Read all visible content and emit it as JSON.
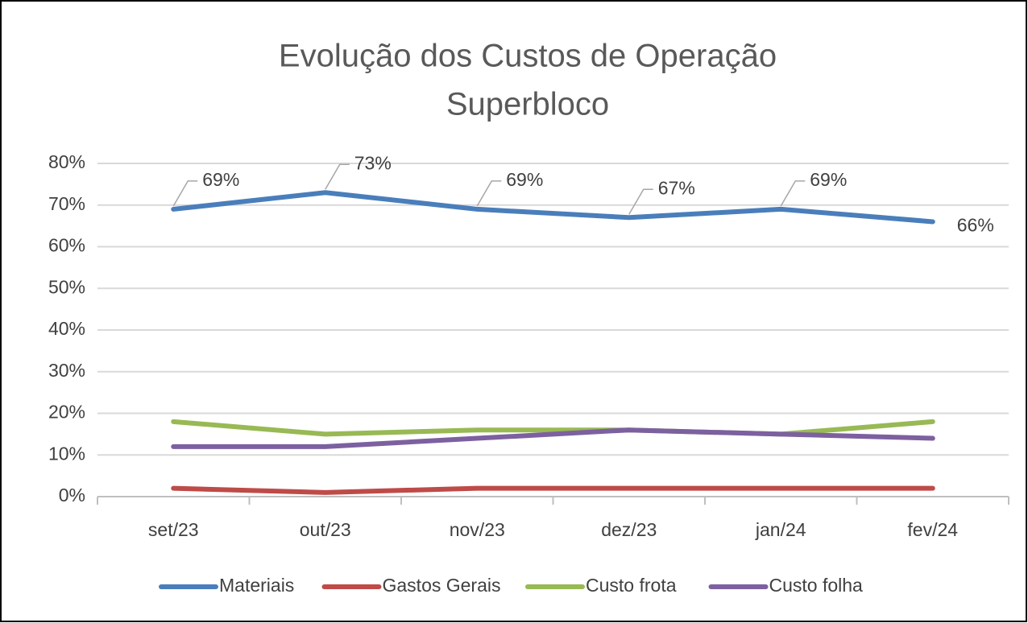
{
  "chart_data": {
    "type": "line",
    "title": [
      "Evolução dos Custos de Operação",
      "Superbloco"
    ],
    "categories": [
      "set/23",
      "out/23",
      "nov/23",
      "dez/23",
      "jan/24",
      "fev/24"
    ],
    "series": [
      {
        "name": "Materiais",
        "color": "#4a7ebb",
        "values": [
          69,
          73,
          69,
          67,
          69,
          66
        ],
        "value_labels": [
          "69%",
          "73%",
          "69%",
          "67%",
          "69%",
          "66%"
        ]
      },
      {
        "name": "Gastos Gerais",
        "color": "#be4b48",
        "values": [
          2,
          1,
          2,
          2,
          2,
          2
        ]
      },
      {
        "name": "Custo frota",
        "color": "#98b954",
        "values": [
          18,
          15,
          16,
          16,
          15,
          18
        ]
      },
      {
        "name": "Custo folha",
        "color": "#7d60a0",
        "values": [
          12,
          12,
          14,
          16,
          15,
          14
        ]
      }
    ],
    "ylim": [
      0,
      80
    ],
    "yticks": [
      {
        "value": 0,
        "label": "0%"
      },
      {
        "value": 10,
        "label": "10%"
      },
      {
        "value": 20,
        "label": "20%"
      },
      {
        "value": 30,
        "label": "30%"
      },
      {
        "value": 40,
        "label": "40%"
      },
      {
        "value": 50,
        "label": "50%"
      },
      {
        "value": 60,
        "label": "60%"
      },
      {
        "value": 70,
        "label": "70%"
      },
      {
        "value": 80,
        "label": "80%"
      }
    ],
    "grid": true,
    "legend": "bottom"
  }
}
